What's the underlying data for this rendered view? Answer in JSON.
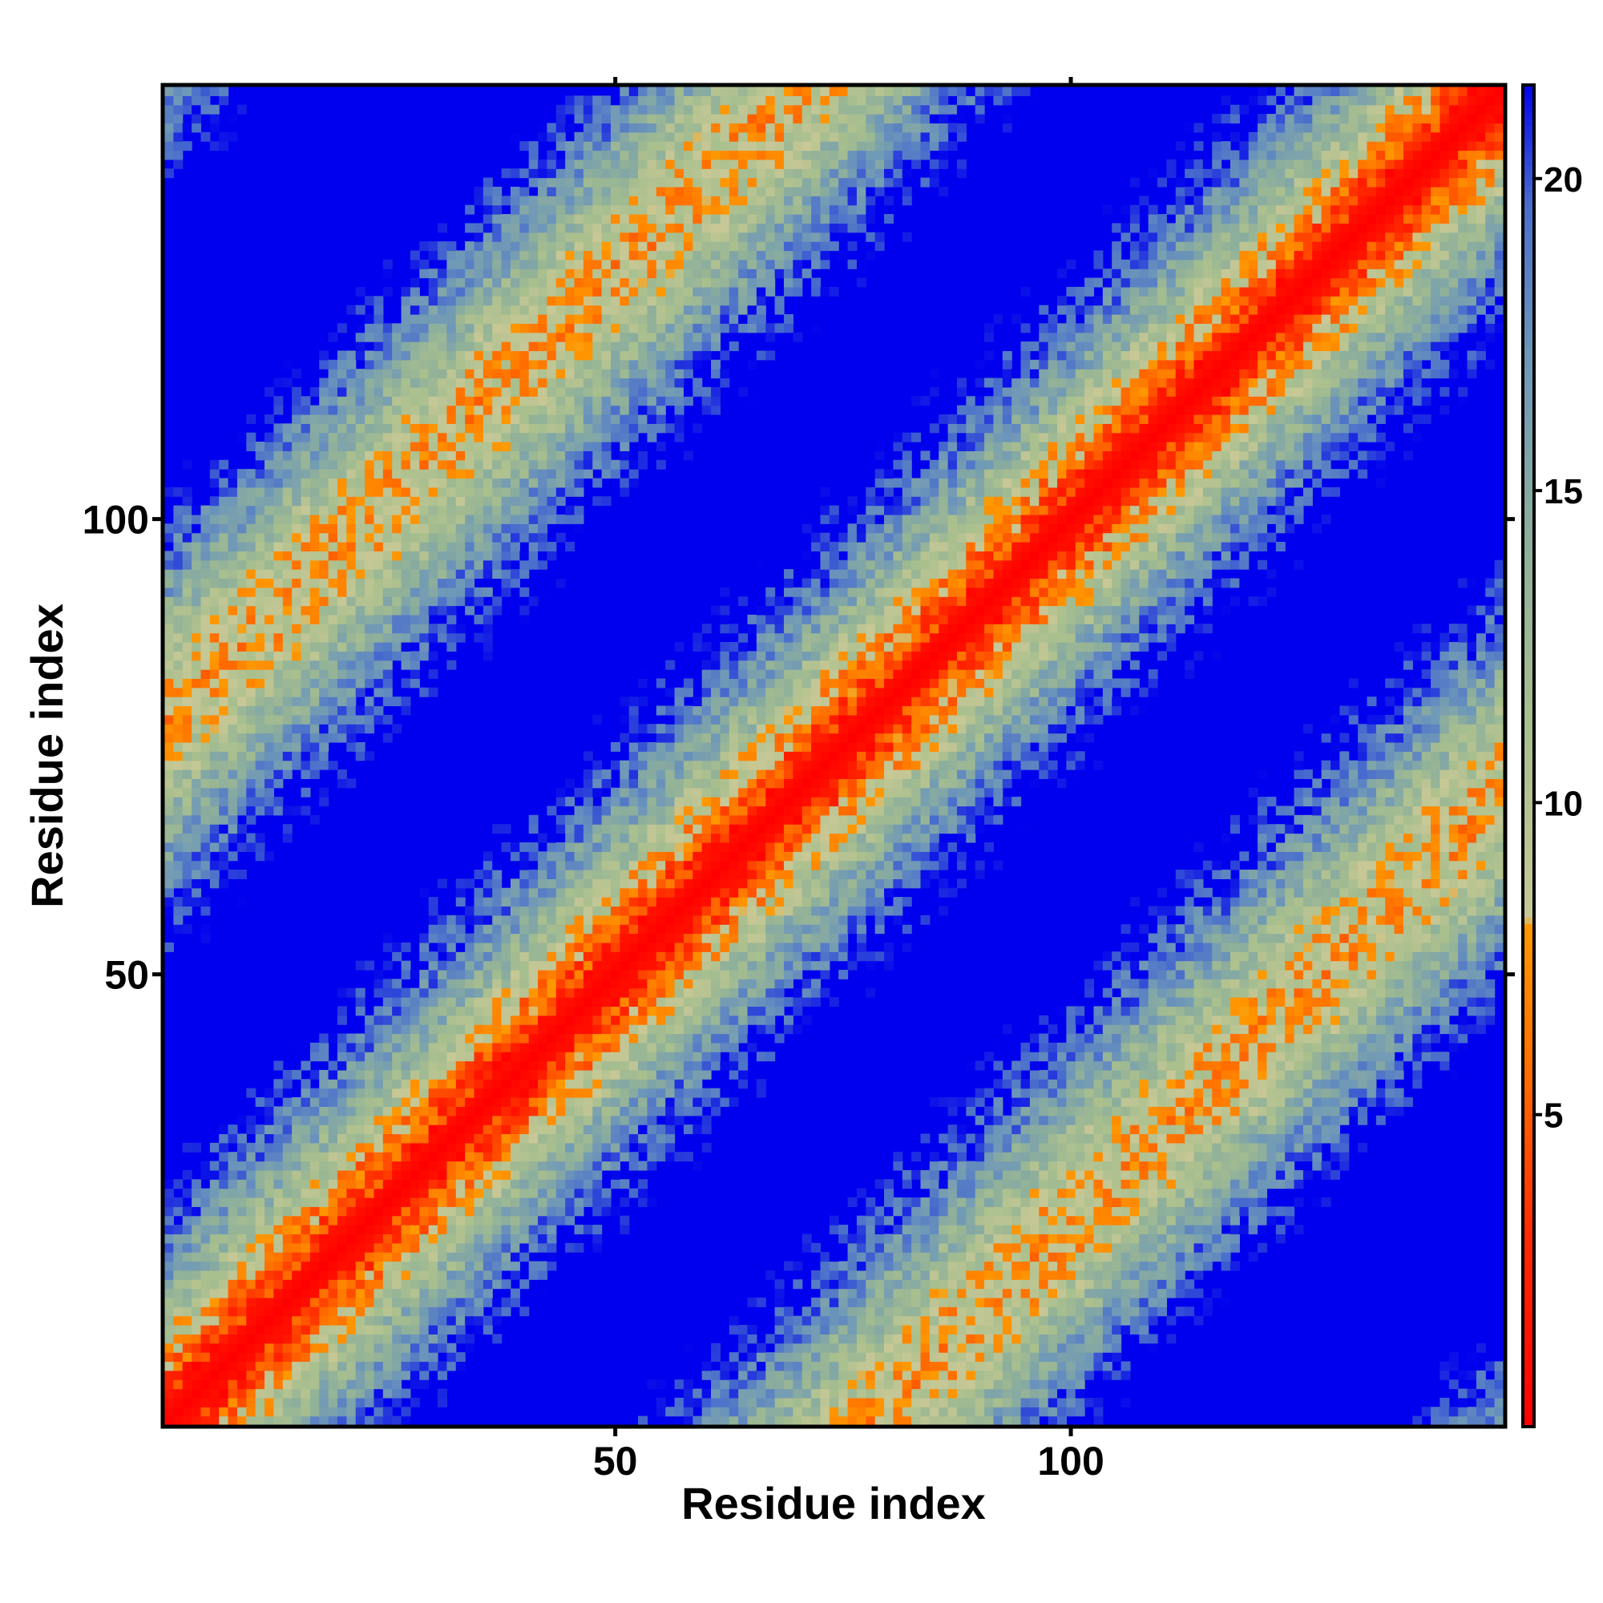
{
  "chart_data": {
    "type": "heatmap",
    "title": "",
    "xlabel": "Residue index",
    "ylabel": "Residue index",
    "n_residues": 147,
    "xlim": [
      1,
      147
    ],
    "ylim": [
      1,
      147
    ],
    "x_ticks": [
      50,
      100
    ],
    "y_ticks": [
      50,
      100
    ],
    "colorbar": {
      "ticks": [
        5,
        10,
        15,
        20
      ],
      "range": [
        0,
        21.5
      ],
      "stops": [
        {
          "value": 0,
          "color": "#ff0000"
        },
        {
          "value": 3,
          "color": "#ff2a00"
        },
        {
          "value": 5.5,
          "color": "#ff6a00"
        },
        {
          "value": 8,
          "color": "#ff9900"
        },
        {
          "value": 8.1,
          "color": "#c8c896"
        },
        {
          "value": 11,
          "color": "#a9bf8e"
        },
        {
          "value": 14,
          "color": "#8fb09a"
        },
        {
          "value": 17,
          "color": "#6f98b8"
        },
        {
          "value": 19.5,
          "color": "#4a6fcc"
        },
        {
          "value": 21.5,
          "color": "#0000ee"
        }
      ]
    },
    "background_color": "#0000ee",
    "description_values": "pairwise residue distance matrix (symmetric); diagonal ~0, periodic contact bands of ~10 Å with off-diagonal stripes, large blue regions >20"
  }
}
